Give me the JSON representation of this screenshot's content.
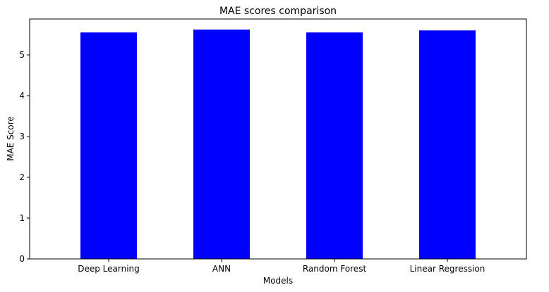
{
  "chart_data": {
    "type": "bar",
    "title": "MAE scores comparison",
    "xlabel": "Models",
    "ylabel": "MAE Score",
    "categories": [
      "Deep Learning",
      "ANN",
      "Random Forest",
      "Linear Regression"
    ],
    "values": [
      5.55,
      5.62,
      5.55,
      5.6
    ],
    "ylim": [
      0,
      5.88
    ],
    "yticks": [
      0,
      1,
      2,
      3,
      4,
      5
    ],
    "bar_color": "#0000ff",
    "grid": false,
    "legend": "none"
  }
}
